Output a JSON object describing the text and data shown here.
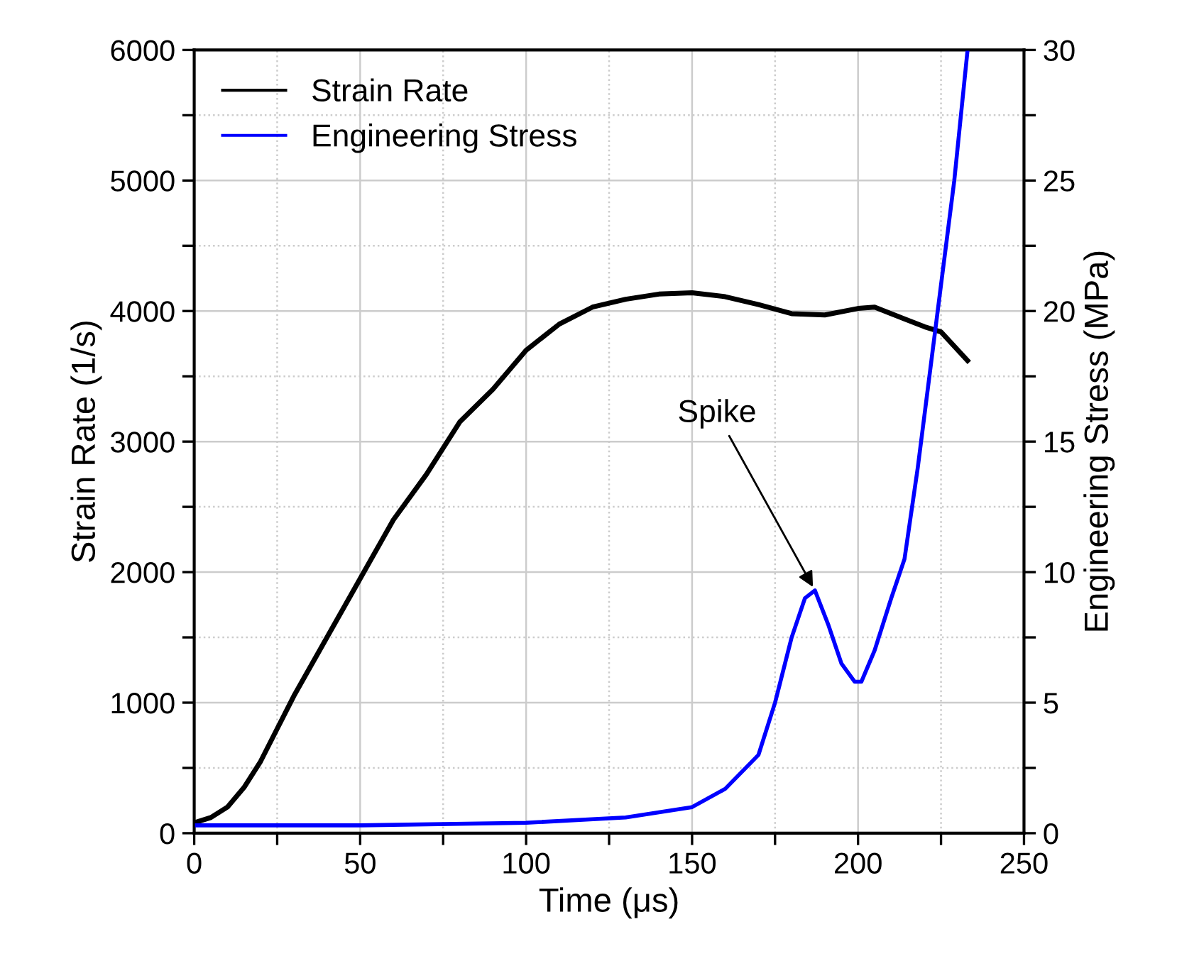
{
  "chart_data": {
    "type": "line",
    "xlabel": "Time (μs)",
    "ylabel": "Strain Rate (1/s)",
    "y2label": "Engineering Stress (MPa)",
    "series": [
      {
        "name": "Strain Rate",
        "color": "#000000",
        "x": [
          0,
          5,
          10,
          15,
          20,
          25,
          30,
          40,
          50,
          60,
          70,
          80,
          90,
          100,
          110,
          120,
          130,
          140,
          150,
          160,
          170,
          180,
          190,
          200,
          205,
          210,
          220,
          225,
          233
        ],
        "values": [
          80,
          120,
          200,
          350,
          550,
          800,
          1050,
          1500,
          1950,
          2400,
          2750,
          3150,
          3400,
          3700,
          3900,
          4030,
          4090,
          4130,
          4140,
          4110,
          4050,
          3980,
          3970,
          4020,
          4030,
          3980,
          3880,
          3840,
          3620
        ]
      },
      {
        "name": "Engineering Stress",
        "color": "#0000ff",
        "axis": "y2",
        "x": [
          0,
          50,
          100,
          130,
          150,
          160,
          170,
          175,
          180,
          184,
          187,
          191,
          195,
          199,
          201,
          205,
          210,
          214,
          218,
          222,
          225,
          229,
          233
        ],
        "values": [
          0.3,
          0.3,
          0.4,
          0.6,
          1.0,
          1.7,
          3.0,
          5.0,
          7.5,
          9.0,
          9.3,
          8.0,
          6.5,
          5.8,
          5.8,
          7.0,
          9.0,
          10.5,
          14,
          18,
          21,
          25,
          30
        ]
      }
    ],
    "annotations": [
      {
        "text": "Spike",
        "x": 187,
        "y": 1860
      }
    ],
    "xlim": [
      0,
      250
    ],
    "xticks": [
      0,
      {
        "value": 25,
        "label": null
      },
      50,
      {
        "value": 75,
        "label": null
      },
      100,
      {
        "value": 125,
        "label": null
      },
      150,
      {
        "value": 175,
        "label": null
      },
      200,
      {
        "value": 225,
        "label": null
      },
      250
    ],
    "ylim": [
      0,
      6000
    ],
    "yticks": [
      0,
      {
        "value": 500,
        "label": null
      },
      1000,
      {
        "value": 1500,
        "label": null
      },
      2000,
      {
        "value": 2500,
        "label": null
      },
      3000,
      {
        "value": 3500,
        "label": null
      },
      4000,
      {
        "value": 4500,
        "label": null
      },
      5000,
      {
        "value": 5500,
        "label": null
      },
      6000
    ],
    "y2lim": [
      0,
      30
    ],
    "y2ticks": [
      0,
      {
        "value": 2.5,
        "label": null
      },
      5,
      {
        "value": 7.5,
        "label": null
      },
      10,
      {
        "value": 12.5,
        "label": null
      },
      15,
      {
        "value": 17.5,
        "label": null
      },
      20,
      {
        "value": 22.5,
        "label": null
      },
      25,
      {
        "value": 27.5,
        "label": null
      },
      30
    ],
    "grid": true,
    "legend": "top left",
    "line_style": "solid",
    "marker": "none"
  }
}
